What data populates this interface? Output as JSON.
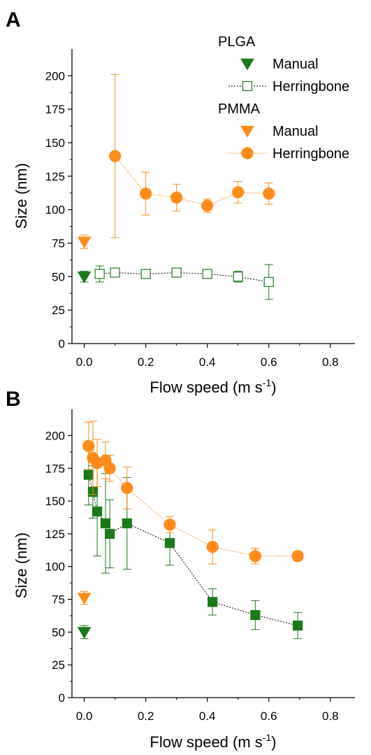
{
  "chart_data": [
    {
      "type": "scatter",
      "panel_label": "A",
      "xlabel": "Flow speed (m s",
      "xlabel_sup": "-1",
      "xlabel_close": ")",
      "ylabel": "Size (nm)",
      "xlim": [
        -0.04,
        0.88
      ],
      "ylim": [
        0,
        220
      ],
      "xticks": [
        "0.0",
        "0.2",
        "0.4",
        "0.6",
        "0.8"
      ],
      "xtick_values": [
        0,
        0.2,
        0.4,
        0.6,
        0.8
      ],
      "yticks": [
        "0",
        "25",
        "50",
        "75",
        "100",
        "125",
        "150",
        "175",
        "200"
      ],
      "ytick_values": [
        0,
        25,
        50,
        75,
        100,
        125,
        150,
        175,
        200
      ],
      "legend": {
        "placement": "top-right",
        "groups": [
          {
            "title": "PLGA",
            "entries": [
              "Manual",
              "Herringbone"
            ]
          },
          {
            "title": "PMMA",
            "entries": [
              "Manual",
              "Herringbone"
            ]
          }
        ]
      },
      "series": [
        {
          "name": "Manual",
          "group": "PLGA",
          "color": "#1a7a1a",
          "marker": "triangle-down",
          "filled": true,
          "line": false,
          "x": [
            0.0
          ],
          "y": [
            50
          ],
          "err": [
            4
          ]
        },
        {
          "name": "Herringbone",
          "group": "PLGA",
          "color": "#1a7a1a",
          "marker": "square",
          "filled": false,
          "line": true,
          "x": [
            0.05,
            0.1,
            0.2,
            0.3,
            0.4,
            0.5,
            0.6
          ],
          "y": [
            52,
            53,
            52,
            53,
            52,
            50,
            46
          ],
          "err": [
            6,
            3,
            3,
            3,
            2,
            4,
            13
          ]
        },
        {
          "name": "Manual",
          "group": "PMMA",
          "color": "#ff8c1a",
          "marker": "triangle-down",
          "filled": true,
          "line": false,
          "x": [
            0.0
          ],
          "y": [
            76
          ],
          "err": [
            5
          ]
        },
        {
          "name": "Herringbone",
          "group": "PMMA",
          "color": "#ff8c1a",
          "marker": "circle",
          "filled": true,
          "line": true,
          "x": [
            0.1,
            0.2,
            0.3,
            0.4,
            0.5,
            0.6
          ],
          "y": [
            140,
            112,
            109,
            103,
            113,
            112
          ],
          "err": [
            61,
            16,
            10,
            5,
            8,
            8
          ]
        }
      ]
    },
    {
      "type": "scatter",
      "panel_label": "B",
      "xlabel": "Flow speed (m s",
      "xlabel_sup": "-1",
      "xlabel_close": ")",
      "ylabel": "Size (nm)",
      "xlim": [
        -0.04,
        0.88
      ],
      "ylim": [
        0,
        220
      ],
      "xticks": [
        "0.0",
        "0.2",
        "0.4",
        "0.6",
        "0.8"
      ],
      "xtick_values": [
        0,
        0.2,
        0.4,
        0.6,
        0.8
      ],
      "yticks": [
        "0",
        "25",
        "50",
        "75",
        "100",
        "125",
        "150",
        "175",
        "200"
      ],
      "ytick_values": [
        0,
        25,
        50,
        75,
        100,
        125,
        150,
        175,
        200
      ],
      "series": [
        {
          "name": "Manual",
          "group": "PLGA",
          "color": "#1a7a1a",
          "marker": "triangle-down",
          "filled": true,
          "line": false,
          "x": [
            0.0
          ],
          "y": [
            50
          ],
          "err": [
            5
          ]
        },
        {
          "name": "Manual",
          "group": "PMMA",
          "color": "#ff8c1a",
          "marker": "triangle-down",
          "filled": true,
          "line": false,
          "x": [
            0.0
          ],
          "y": [
            76
          ],
          "err": [
            5
          ]
        },
        {
          "name": "Herringbone",
          "group": "PLGA",
          "color": "#1a7a1a",
          "marker": "square",
          "filled": true,
          "line": true,
          "x": [
            0.014,
            0.028,
            0.042,
            0.069,
            0.083,
            0.139,
            0.278,
            0.417,
            0.556,
            0.694
          ],
          "y": [
            170,
            157,
            142,
            133,
            125,
            133,
            118,
            73,
            63,
            55
          ],
          "err": [
            23,
            20,
            34,
            38,
            26,
            35,
            17,
            10,
            11,
            10
          ]
        },
        {
          "name": "Herringbone",
          "group": "PMMA",
          "color": "#ff8c1a",
          "marker": "circle",
          "filled": true,
          "line": true,
          "x": [
            0.014,
            0.028,
            0.042,
            0.069,
            0.083,
            0.139,
            0.278,
            0.417,
            0.556,
            0.694
          ],
          "y": [
            192,
            183,
            179,
            181,
            175,
            160,
            132,
            115,
            108,
            108
          ],
          "err": [
            18,
            28,
            18,
            14,
            10,
            16,
            6,
            13,
            6,
            2
          ]
        }
      ]
    }
  ]
}
